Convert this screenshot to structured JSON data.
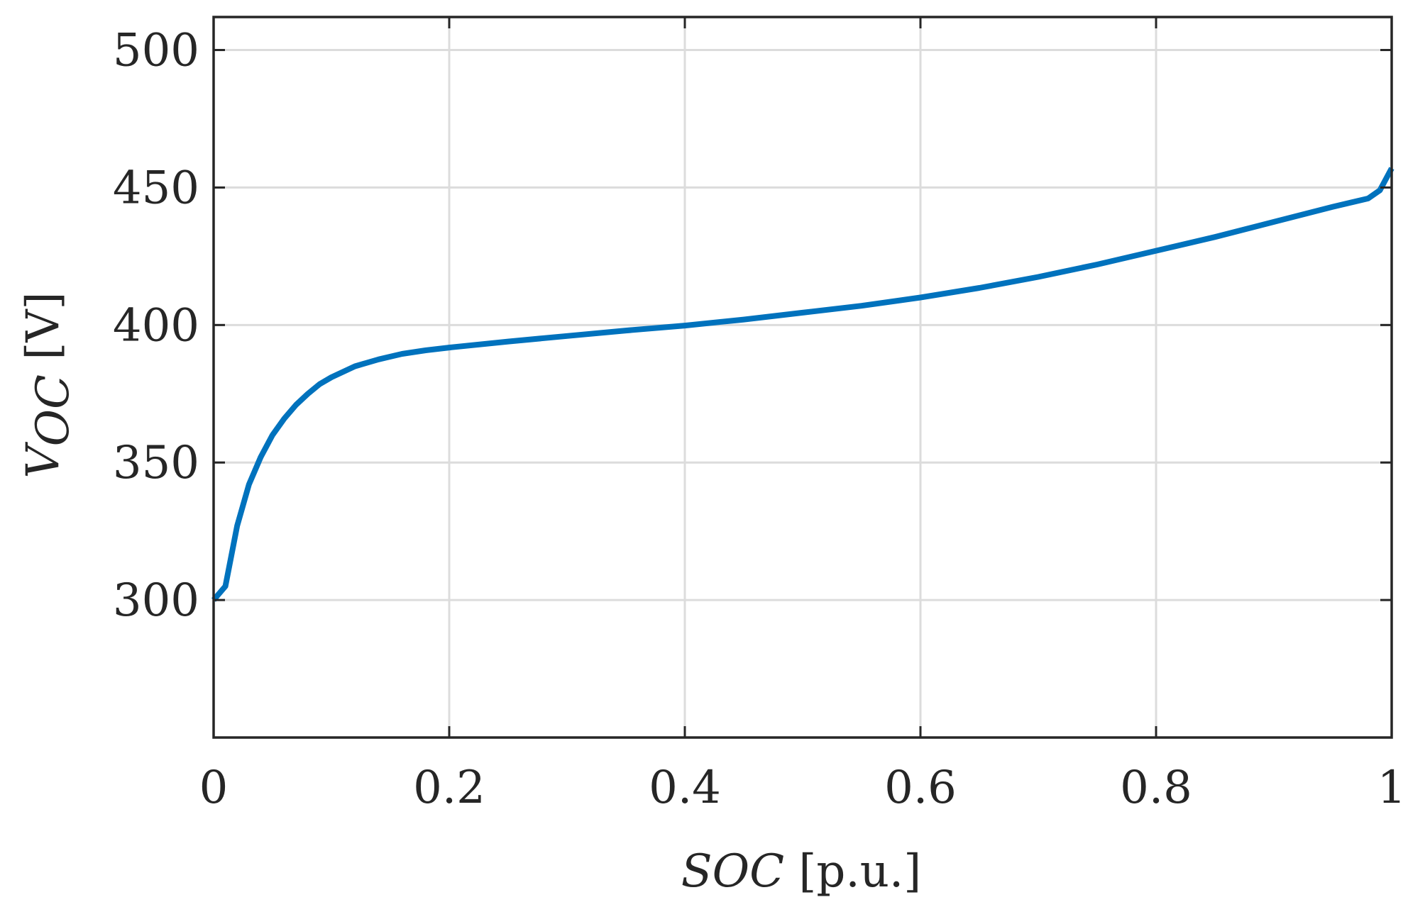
{
  "chart_data": {
    "type": "line",
    "title": "",
    "xlabel": {
      "var": "SOC",
      "unit": "[p.u.]"
    },
    "ylabel": {
      "var": "V",
      "sub": "OC",
      "unit": "[V]"
    },
    "xlim": [
      0,
      1
    ],
    "ylim": [
      250,
      512
    ],
    "x_ticks": [
      0,
      0.2,
      0.4,
      0.6,
      0.8,
      1
    ],
    "x_tick_labels": [
      "0",
      "0.2",
      "0.4",
      "0.6",
      "0.8",
      "1"
    ],
    "y_ticks": [
      300,
      350,
      400,
      450,
      500
    ],
    "y_tick_labels": [
      "300",
      "350",
      "400",
      "450",
      "500"
    ],
    "grid": true,
    "colors": {
      "line": "#0072BD",
      "axes": "#262626",
      "grid": "#dcdcdc"
    },
    "series": [
      {
        "x": [
          0,
          0.01,
          0.02,
          0.03,
          0.04,
          0.05,
          0.06,
          0.07,
          0.08,
          0.09,
          0.1,
          0.12,
          0.14,
          0.16,
          0.18,
          0.2,
          0.25,
          0.3,
          0.35,
          0.4,
          0.45,
          0.5,
          0.55,
          0.6,
          0.65,
          0.7,
          0.75,
          0.8,
          0.85,
          0.9,
          0.95,
          0.98,
          0.99,
          1.0
        ],
        "y": [
          300,
          305,
          327,
          342,
          352,
          360,
          366,
          371,
          375,
          378.5,
          381,
          385,
          387.5,
          389.5,
          390.8,
          391.8,
          394,
          396,
          398,
          399.8,
          402,
          404.5,
          407,
          410,
          413.5,
          417.5,
          422,
          427,
          432,
          437.5,
          443,
          446,
          449,
          457
        ]
      }
    ]
  }
}
